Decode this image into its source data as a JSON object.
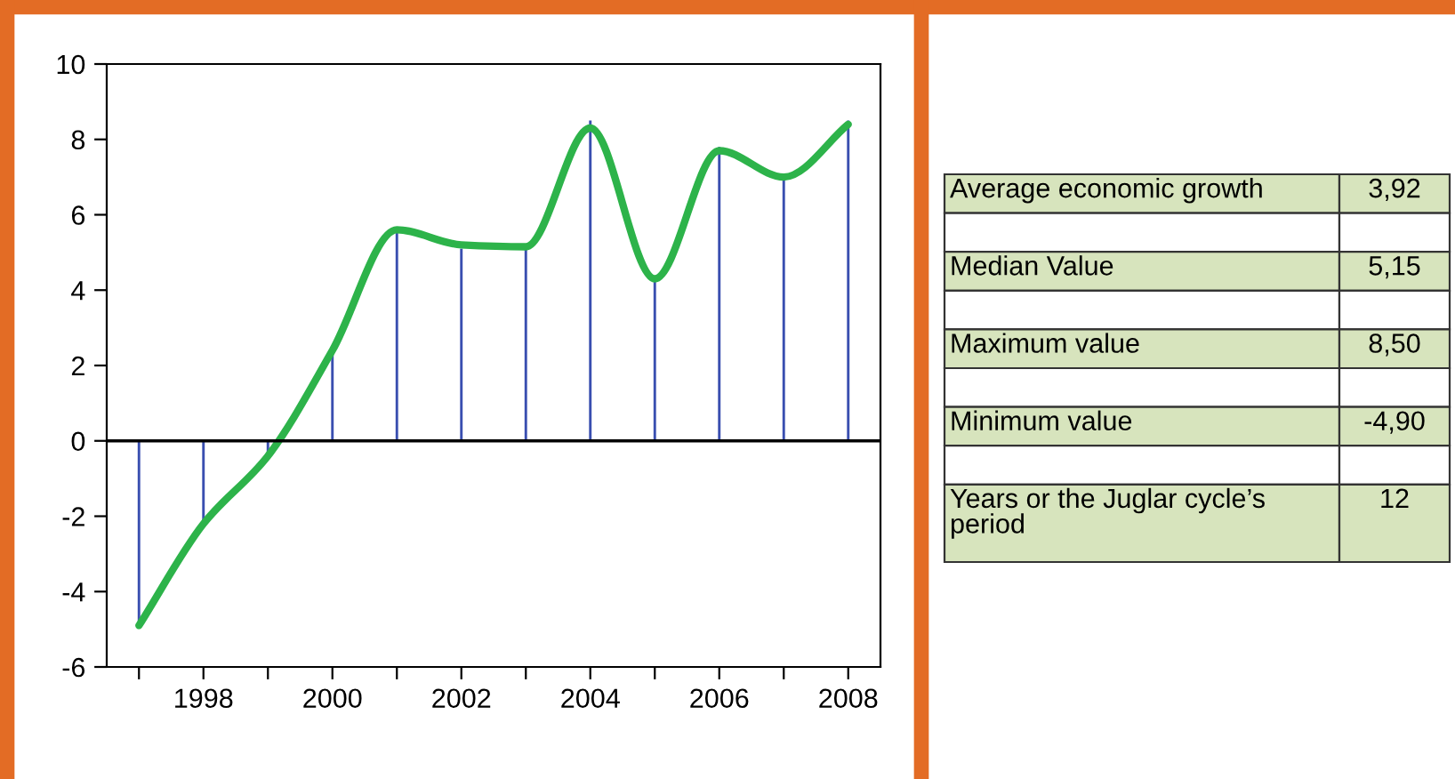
{
  "chart_data": [
    {
      "type": "line",
      "x": [
        1997,
        1998,
        1999,
        2000,
        2001,
        2002,
        2003,
        2004,
        2005,
        2006,
        2007,
        2008
      ],
      "series": [
        {
          "type": "bar",
          "color": "#3a4fb0",
          "values": [
            -4.9,
            -2.2,
            -0.4,
            2.3,
            5.6,
            5.1,
            5.15,
            8.5,
            4.3,
            7.8,
            7.0,
            8.5
          ]
        },
        {
          "type": "line",
          "color": "#2db34a",
          "values": [
            -4.9,
            -2.2,
            -0.4,
            2.4,
            5.6,
            5.2,
            5.15,
            8.3,
            4.3,
            7.7,
            7.0,
            8.4
          ]
        }
      ],
      "xlim": [
        1996.5,
        2008.5
      ],
      "ylim": [
        -6,
        10
      ],
      "xticks": [
        {
          "value": 1997,
          "label": null
        },
        1998,
        {
          "value": 1999,
          "label": null
        },
        2000,
        {
          "value": 2001,
          "label": null
        },
        2002,
        {
          "value": 2003,
          "label": null
        },
        2004,
        {
          "value": 2005,
          "label": null
        },
        2006,
        {
          "value": 2007,
          "label": null
        },
        2008
      ],
      "yticks": [
        -6,
        -4,
        -2,
        0,
        2,
        4,
        6,
        8,
        10
      ],
      "ref_lines": [
        {
          "axis": "y",
          "value": 0,
          "color": "#000000"
        }
      ],
      "grid": false,
      "legend": false,
      "marker": "none",
      "line_style": "solid"
    },
    {
      "type": "other",
      "categories": [
        "Average economic growth",
        "Median Value",
        "Maximum value",
        "Minimum value",
        "Years or the Juglar cycle’s period"
      ],
      "value_labels": [
        "3,92",
        "5,15",
        "8,50",
        "-4,90",
        "12"
      ],
      "color": "#d7e4bd"
    }
  ]
}
